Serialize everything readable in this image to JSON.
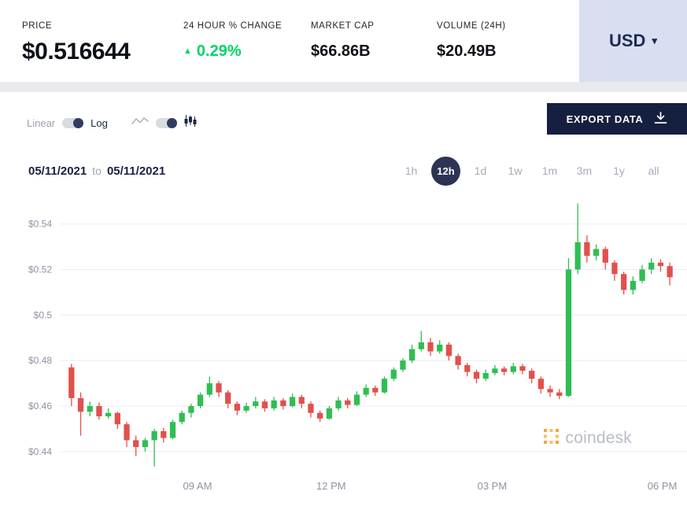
{
  "stats": {
    "price": {
      "label": "PRICE",
      "value": "$0.516644"
    },
    "change": {
      "label": "24 HOUR % CHANGE",
      "arrow": "▲",
      "value": "0.29%",
      "color": "#00d564"
    },
    "market_cap": {
      "label": "MARKET CAP",
      "value": "$66.86B"
    },
    "volume": {
      "label": "VOLUME (24H)",
      "value": "$20.49B"
    }
  },
  "currency_selector": {
    "value": "USD",
    "caret": "▾"
  },
  "toolbar": {
    "scale_toggle": {
      "left_label": "Linear",
      "right_label": "Log",
      "selected": "Log"
    },
    "chart_type_toggle": {
      "selected": "candlestick"
    },
    "export_button": {
      "label": "EXPORT DATA"
    }
  },
  "range_controls": {
    "start_date": "05/11/2021",
    "separator": "to",
    "end_date": "05/11/2021",
    "intervals": [
      {
        "label": "1h",
        "selected": false
      },
      {
        "label": "12h",
        "selected": true
      },
      {
        "label": "1d",
        "selected": false
      },
      {
        "label": "1w",
        "selected": false
      },
      {
        "label": "1m",
        "selected": false
      },
      {
        "label": "3m",
        "selected": false
      },
      {
        "label": "1y",
        "selected": false
      },
      {
        "label": "all",
        "selected": false
      }
    ]
  },
  "watermark": {
    "text": "coindesk"
  },
  "chart_data": {
    "type": "candlestick",
    "ylim": [
      0.432,
      0.553
    ],
    "yticks": [
      {
        "value": 0.54,
        "label": "$0.54"
      },
      {
        "value": 0.52,
        "label": "$0.52"
      },
      {
        "value": 0.5,
        "label": "$0.5"
      },
      {
        "value": 0.48,
        "label": "$0.48"
      },
      {
        "value": 0.46,
        "label": "$0.46"
      },
      {
        "value": 0.44,
        "label": "$0.44"
      }
    ],
    "xticks": [
      {
        "pos": 0.215,
        "label": "09 AM"
      },
      {
        "pos": 0.435,
        "label": "12 PM"
      },
      {
        "pos": 0.7,
        "label": "03 PM"
      },
      {
        "pos": 0.98,
        "label": "06 PM"
      }
    ],
    "colors": {
      "up": "#2fbe53",
      "down": "#e2504c",
      "grid": "#ebedf2",
      "axis_text": "#8d93a1"
    },
    "candles": [
      [
        0.477,
        0.4785,
        0.46,
        0.4635
      ],
      [
        0.4635,
        0.466,
        0.447,
        0.4575
      ],
      [
        0.4575,
        0.462,
        0.4555,
        0.46
      ],
      [
        0.46,
        0.4615,
        0.454,
        0.4555
      ],
      [
        0.4555,
        0.459,
        0.4545,
        0.457
      ],
      [
        0.457,
        0.4575,
        0.45,
        0.452
      ],
      [
        0.452,
        0.453,
        0.442,
        0.445
      ],
      [
        0.445,
        0.447,
        0.438,
        0.442
      ],
      [
        0.442,
        0.446,
        0.44,
        0.445
      ],
      [
        0.445,
        0.45,
        0.4335,
        0.449
      ],
      [
        0.449,
        0.4505,
        0.444,
        0.446
      ],
      [
        0.446,
        0.454,
        0.4455,
        0.453
      ],
      [
        0.453,
        0.458,
        0.452,
        0.457
      ],
      [
        0.457,
        0.461,
        0.455,
        0.46
      ],
      [
        0.46,
        0.466,
        0.459,
        0.465
      ],
      [
        0.465,
        0.473,
        0.464,
        0.47
      ],
      [
        0.47,
        0.471,
        0.464,
        0.466
      ],
      [
        0.466,
        0.467,
        0.459,
        0.461
      ],
      [
        0.461,
        0.462,
        0.456,
        0.458
      ],
      [
        0.458,
        0.4615,
        0.457,
        0.46
      ],
      [
        0.46,
        0.464,
        0.459,
        0.462
      ],
      [
        0.462,
        0.463,
        0.4575,
        0.459
      ],
      [
        0.459,
        0.464,
        0.458,
        0.4625
      ],
      [
        0.4625,
        0.4635,
        0.4585,
        0.46
      ],
      [
        0.46,
        0.4655,
        0.4595,
        0.464
      ],
      [
        0.464,
        0.465,
        0.459,
        0.461
      ],
      [
        0.461,
        0.462,
        0.455,
        0.457
      ],
      [
        0.457,
        0.458,
        0.453,
        0.4545
      ],
      [
        0.4545,
        0.46,
        0.454,
        0.459
      ],
      [
        0.459,
        0.464,
        0.458,
        0.4625
      ],
      [
        0.4625,
        0.4635,
        0.459,
        0.4605
      ],
      [
        0.4605,
        0.4665,
        0.46,
        0.465
      ],
      [
        0.465,
        0.4695,
        0.464,
        0.468
      ],
      [
        0.468,
        0.469,
        0.4645,
        0.466
      ],
      [
        0.466,
        0.473,
        0.4655,
        0.472
      ],
      [
        0.472,
        0.477,
        0.471,
        0.476
      ],
      [
        0.476,
        0.481,
        0.475,
        0.48
      ],
      [
        0.48,
        0.487,
        0.479,
        0.485
      ],
      [
        0.485,
        0.493,
        0.484,
        0.488
      ],
      [
        0.488,
        0.49,
        0.482,
        0.484
      ],
      [
        0.484,
        0.489,
        0.483,
        0.487
      ],
      [
        0.487,
        0.488,
        0.48,
        0.482
      ],
      [
        0.482,
        0.483,
        0.476,
        0.478
      ],
      [
        0.478,
        0.479,
        0.473,
        0.475
      ],
      [
        0.475,
        0.476,
        0.47,
        0.472
      ],
      [
        0.472,
        0.476,
        0.471,
        0.4745
      ],
      [
        0.4745,
        0.478,
        0.4735,
        0.4765
      ],
      [
        0.4765,
        0.4775,
        0.4735,
        0.475
      ],
      [
        0.475,
        0.479,
        0.474,
        0.4775
      ],
      [
        0.4775,
        0.4785,
        0.474,
        0.4755
      ],
      [
        0.4755,
        0.4765,
        0.47,
        0.472
      ],
      [
        0.472,
        0.473,
        0.4655,
        0.4675
      ],
      [
        0.4675,
        0.469,
        0.464,
        0.466
      ],
      [
        0.466,
        0.4675,
        0.463,
        0.4645
      ],
      [
        0.4645,
        0.525,
        0.464,
        0.52
      ],
      [
        0.52,
        0.549,
        0.518,
        0.532
      ],
      [
        0.532,
        0.535,
        0.523,
        0.526
      ],
      [
        0.526,
        0.531,
        0.524,
        0.529
      ],
      [
        0.529,
        0.53,
        0.52,
        0.523
      ],
      [
        0.523,
        0.524,
        0.515,
        0.518
      ],
      [
        0.518,
        0.519,
        0.509,
        0.511
      ],
      [
        0.511,
        0.517,
        0.509,
        0.515
      ],
      [
        0.515,
        0.522,
        0.514,
        0.52
      ],
      [
        0.52,
        0.525,
        0.518,
        0.523
      ],
      [
        0.523,
        0.5245,
        0.519,
        0.5215
      ],
      [
        0.5215,
        0.523,
        0.513,
        0.5166
      ]
    ]
  }
}
